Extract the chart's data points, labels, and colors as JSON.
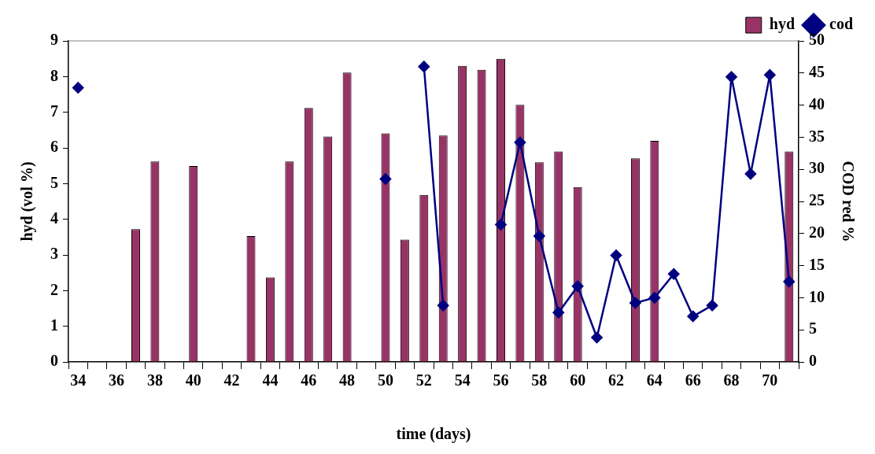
{
  "chart_data": {
    "type": "bar",
    "xlabel": "time (days)",
    "ylabel": "hyd (vol %)",
    "y2label": "COD red %",
    "categories": [
      "34",
      null,
      "36",
      null,
      "38",
      null,
      "40",
      null,
      "42",
      null,
      "44",
      null,
      "46",
      null,
      "48",
      null,
      "50",
      null,
      "52",
      null,
      "54",
      null,
      "56",
      null,
      "58",
      null,
      "60",
      null,
      "62",
      null,
      "64",
      null,
      "66",
      null,
      "68",
      null,
      "70",
      null
    ],
    "series": [
      {
        "name": "hyd",
        "color": "#993366",
        "values": [
          null,
          null,
          null,
          3.72,
          5.62,
          null,
          5.49,
          null,
          null,
          3.53,
          2.37,
          5.62,
          7.12,
          6.32,
          8.11,
          null,
          6.41,
          3.43,
          4.68,
          6.35,
          8.3,
          8.19,
          8.5,
          7.21,
          5.6,
          5.9,
          4.9,
          null,
          null,
          5.71,
          6.2,
          null,
          null,
          null,
          null,
          null,
          null,
          5.9
        ]
      },
      {
        "name": "cod",
        "type": "line",
        "axis": "y2",
        "color": "#000080",
        "values": [
          42.7,
          null,
          null,
          null,
          null,
          null,
          null,
          null,
          null,
          null,
          null,
          null,
          null,
          null,
          null,
          null,
          28.5,
          null,
          46.0,
          8.8,
          null,
          null,
          21.4,
          34.2,
          19.6,
          7.7,
          11.8,
          3.8,
          16.6,
          9.2,
          10.0,
          13.7,
          7.1,
          8.8,
          44.4,
          29.3,
          44.7,
          12.5
        ]
      }
    ],
    "ylim": [
      0,
      9
    ],
    "yticks": [
      0,
      1,
      2,
      3,
      4,
      5,
      6,
      7,
      8,
      9
    ],
    "y2lim": [
      0,
      50
    ],
    "y2ticks": [
      0,
      5,
      10,
      15,
      20,
      25,
      30,
      35,
      40,
      45,
      50
    ],
    "marker": "diamond",
    "line_style": "solid",
    "grid": false,
    "legend": "top right"
  }
}
